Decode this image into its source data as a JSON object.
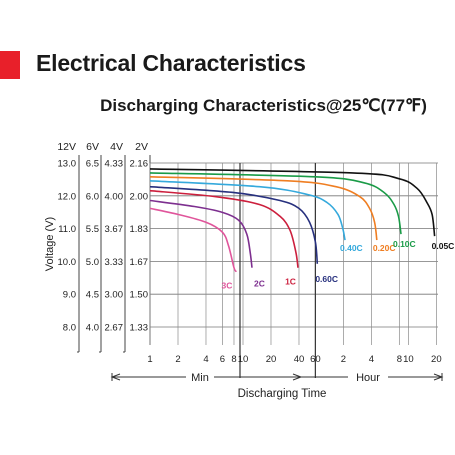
{
  "header": {
    "title": "Electrical Characteristics",
    "accent_color": "#e8202a"
  },
  "chart_data": {
    "type": "line",
    "title": "Discharging Characteristics@25℃(77℉)",
    "xlabel": "Discharging Time",
    "ylabel": "Voltage (V)",
    "x_scale": "log",
    "x_unit_ranges": [
      {
        "label": "Min",
        "from_min": 1,
        "to_min": 60
      },
      {
        "label": "Hour",
        "from_hour": 1,
        "to_hour": 20
      }
    ],
    "x_ticks": [
      {
        "label": "1",
        "minutes": 1
      },
      {
        "label": "2",
        "minutes": 2
      },
      {
        "label": "4",
        "minutes": 4
      },
      {
        "label": "6",
        "minutes": 6
      },
      {
        "label": "8",
        "minutes": 8
      },
      {
        "label": "10",
        "minutes": 10
      },
      {
        "label": "20",
        "minutes": 20
      },
      {
        "label": "40",
        "minutes": 40
      },
      {
        "label": "60",
        "minutes": 60
      },
      {
        "label": "2",
        "minutes": 120
      },
      {
        "label": "4",
        "minutes": 240
      },
      {
        "label": "8",
        "minutes": 480
      },
      {
        "label": "10",
        "minutes": 600
      },
      {
        "label": "20",
        "minutes": 1200
      }
    ],
    "y_axes": [
      {
        "label": "12V",
        "ticks": [
          "13.0",
          "12.0",
          "11.0",
          "10.0",
          "9.0",
          "8.0"
        ]
      },
      {
        "label": "6V",
        "ticks": [
          "6.5",
          "6.0",
          "5.5",
          "5.0",
          "4.5",
          "4.0"
        ]
      },
      {
        "label": "4V",
        "ticks": [
          "4.33",
          "4.00",
          "3.67",
          "3.33",
          "3.00",
          "2.67"
        ]
      },
      {
        "label": "2V",
        "ticks": [
          "2.16",
          "2.00",
          "1.83",
          "1.67",
          "1.50",
          "1.33"
        ]
      }
    ],
    "ylim": [
      1.33,
      2.16
    ],
    "grid": true,
    "legend": "labels at curve ends",
    "series": [
      {
        "name": "3C",
        "color": "#e0559b",
        "points": [
          [
            1,
            1.93
          ],
          [
            2,
            1.9
          ],
          [
            4,
            1.86
          ],
          [
            6,
            1.81
          ],
          [
            7,
            1.74
          ],
          [
            8,
            1.63
          ],
          [
            8.5,
            1.61
          ]
        ]
      },
      {
        "name": "2C",
        "color": "#7d2f8f",
        "points": [
          [
            1,
            1.97
          ],
          [
            3,
            1.94
          ],
          [
            6,
            1.91
          ],
          [
            9,
            1.87
          ],
          [
            11,
            1.8
          ],
          [
            12,
            1.7
          ],
          [
            12.5,
            1.63
          ]
        ]
      },
      {
        "name": "1C",
        "color": "#cc1f3d",
        "points": [
          [
            1,
            2.02
          ],
          [
            5,
            1.99
          ],
          [
            15,
            1.95
          ],
          [
            25,
            1.89
          ],
          [
            32,
            1.82
          ],
          [
            37,
            1.71
          ],
          [
            39,
            1.63
          ]
        ]
      },
      {
        "name": "0.60C",
        "color": "#27307e",
        "points": [
          [
            1,
            2.04
          ],
          [
            8,
            2.01
          ],
          [
            25,
            1.97
          ],
          [
            40,
            1.93
          ],
          [
            52,
            1.86
          ],
          [
            60,
            1.76
          ],
          [
            63,
            1.65
          ]
        ]
      },
      {
        "name": "0.40C",
        "color": "#35a9dc",
        "points": [
          [
            1,
            2.07
          ],
          [
            15,
            2.04
          ],
          [
            50,
            2.0
          ],
          [
            80,
            1.96
          ],
          [
            105,
            1.9
          ],
          [
            118,
            1.83
          ],
          [
            125,
            1.77
          ]
        ]
      },
      {
        "name": "0.20C",
        "color": "#ef7e22",
        "points": [
          [
            1,
            2.09
          ],
          [
            30,
            2.07
          ],
          [
            100,
            2.04
          ],
          [
            180,
            1.99
          ],
          [
            230,
            1.93
          ],
          [
            260,
            1.86
          ],
          [
            275,
            1.77
          ]
        ]
      },
      {
        "name": "0.10C",
        "color": "#1a9b47",
        "points": [
          [
            1,
            2.11
          ],
          [
            60,
            2.09
          ],
          [
            200,
            2.06
          ],
          [
            330,
            2.01
          ],
          [
            420,
            1.95
          ],
          [
            470,
            1.89
          ],
          [
            500,
            1.8
          ]
        ]
      },
      {
        "name": "0.05C",
        "color": "#111111",
        "points": [
          [
            1,
            2.13
          ],
          [
            150,
            2.11
          ],
          [
            480,
            2.08
          ],
          [
            750,
            2.03
          ],
          [
            950,
            1.96
          ],
          [
            1080,
            1.9
          ],
          [
            1150,
            1.79
          ]
        ]
      }
    ]
  }
}
